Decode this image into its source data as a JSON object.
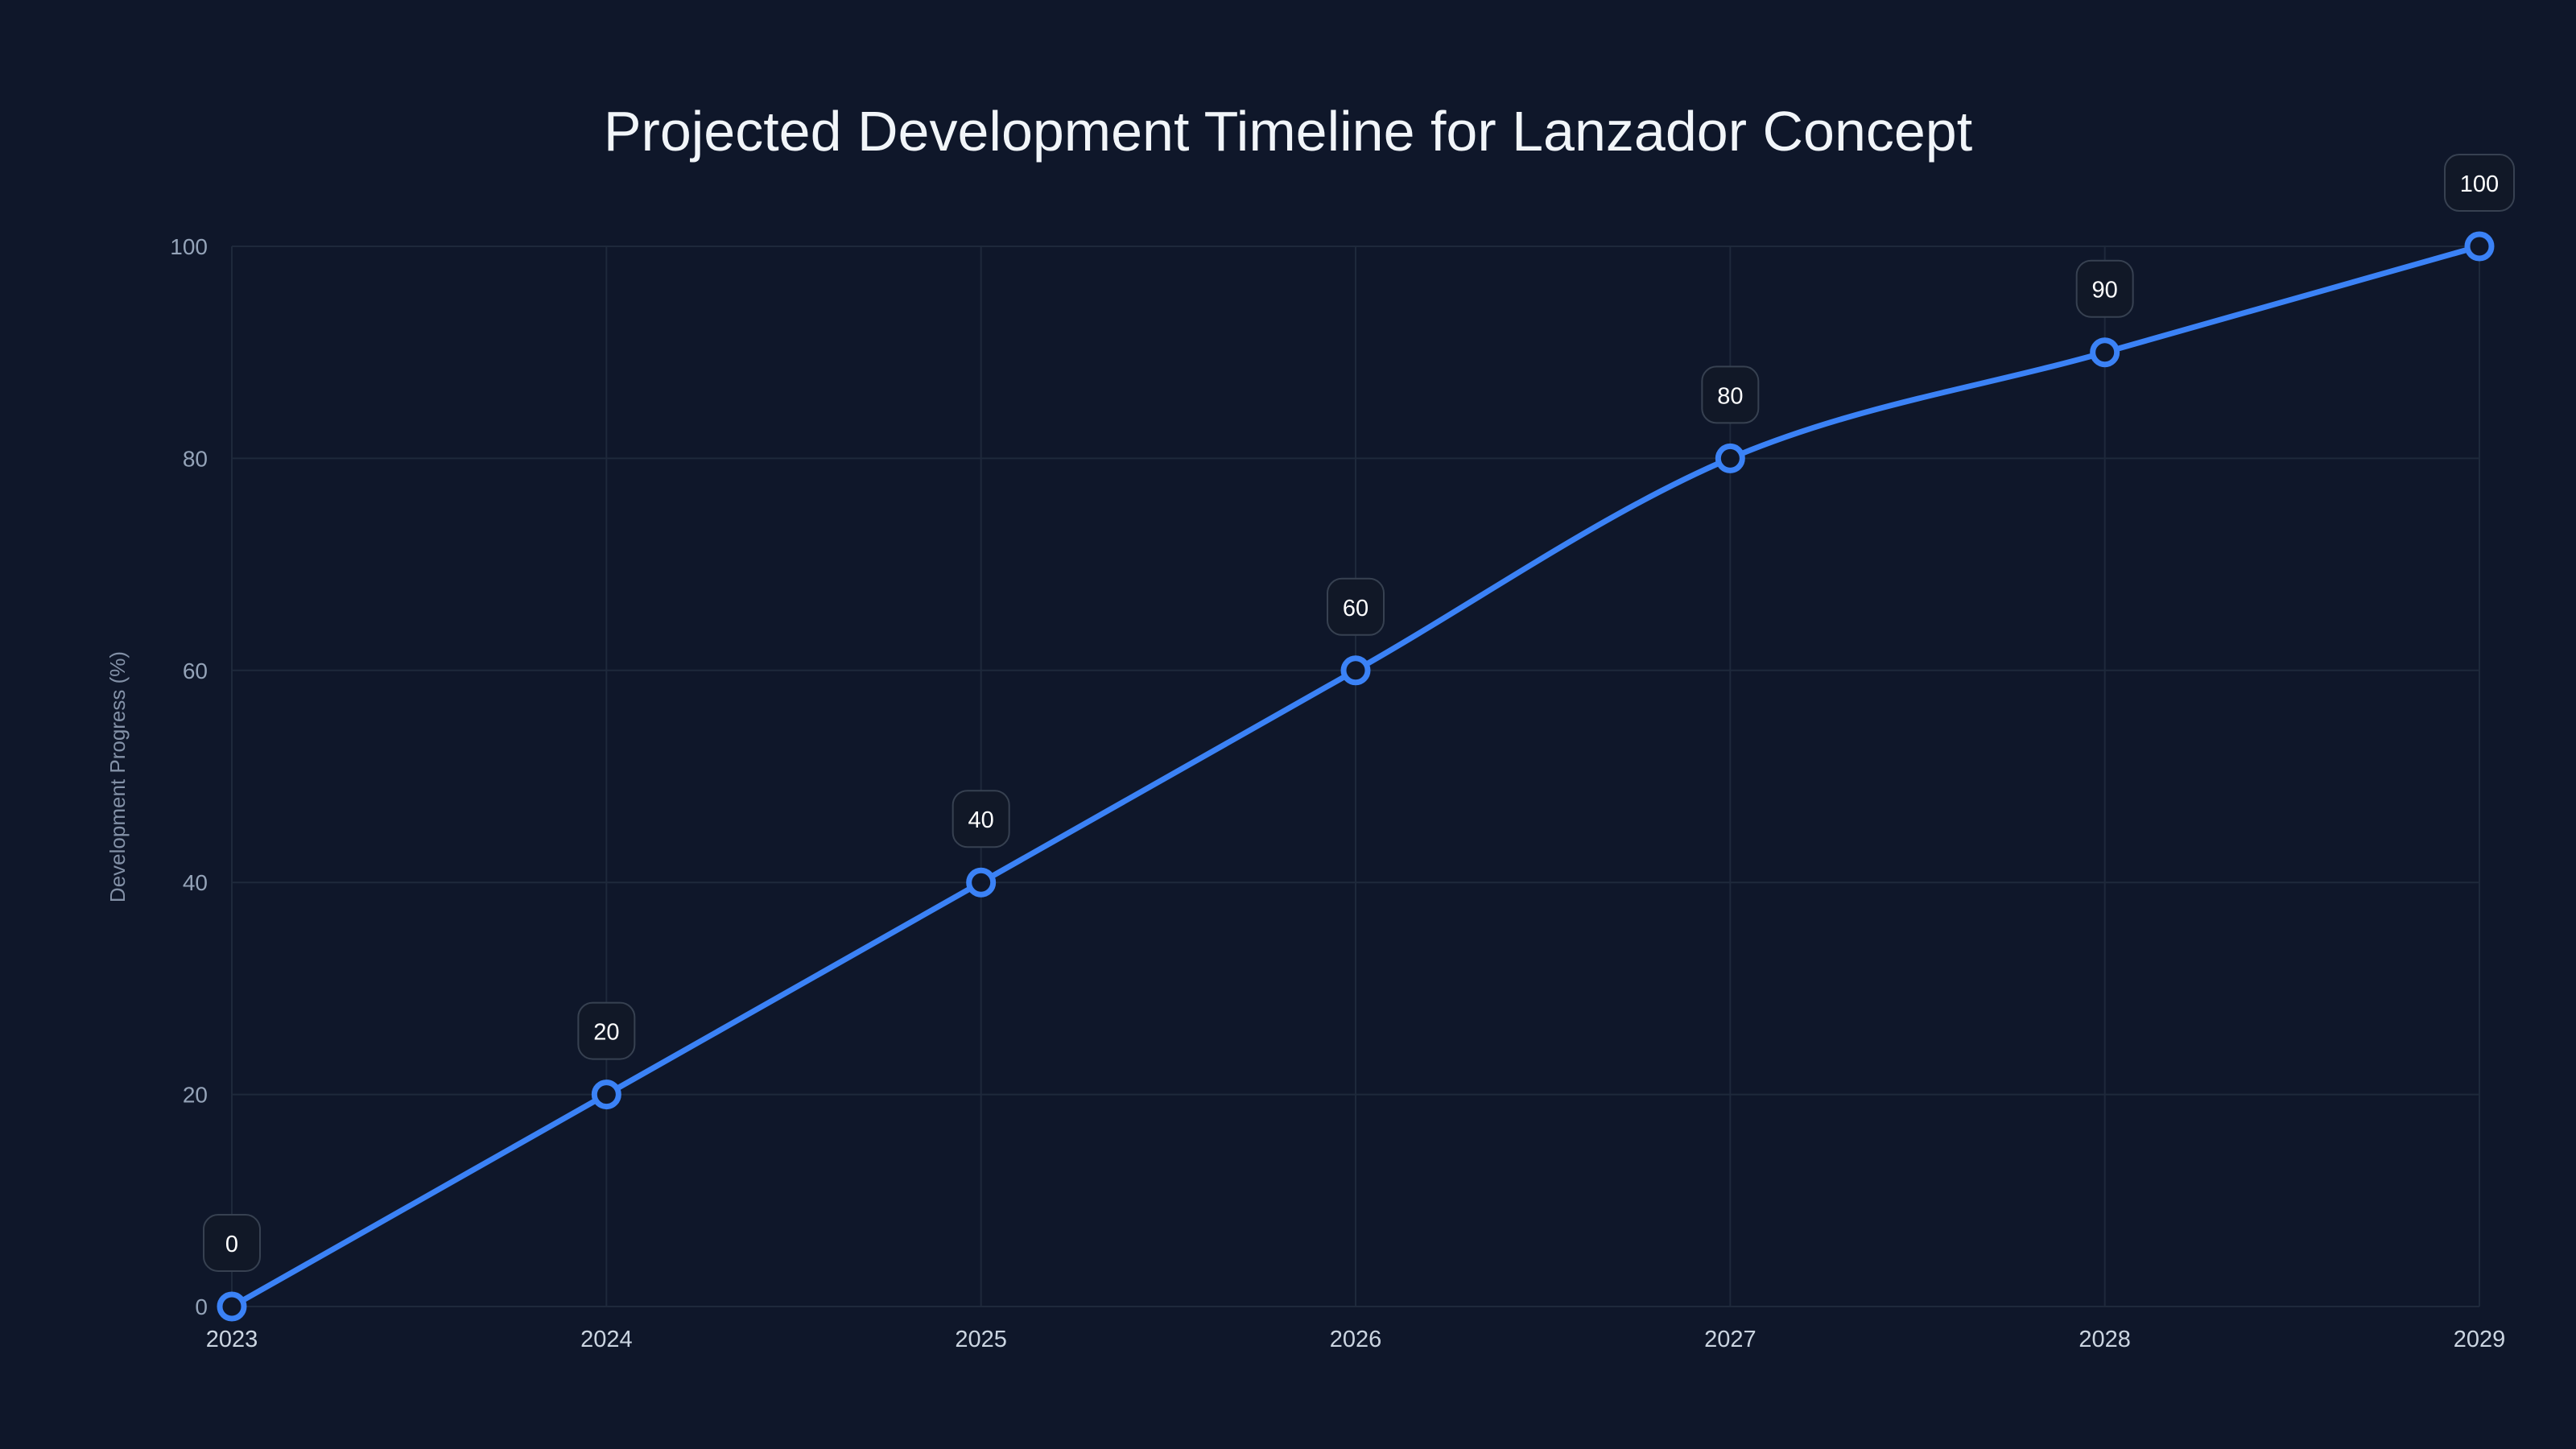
{
  "chart_data": {
    "type": "line",
    "title": "Projected Development Timeline for Lanzador Concept",
    "xlabel": "",
    "ylabel": "Development Progress (%)",
    "categories": [
      "2023",
      "2024",
      "2025",
      "2026",
      "2027",
      "2028",
      "2029"
    ],
    "series": [
      {
        "name": "Development Progress",
        "values": [
          0,
          20,
          40,
          60,
          80,
          90,
          100
        ]
      }
    ],
    "data_labels": [
      "0",
      "20",
      "40",
      "60",
      "80",
      "90",
      "100"
    ],
    "ylim": [
      0,
      100
    ],
    "yticks": [
      "0",
      "20",
      "40",
      "60",
      "80",
      "100"
    ],
    "grid": true,
    "colors": {
      "background": "#0f172a",
      "line": "#3b82f6"
    }
  }
}
